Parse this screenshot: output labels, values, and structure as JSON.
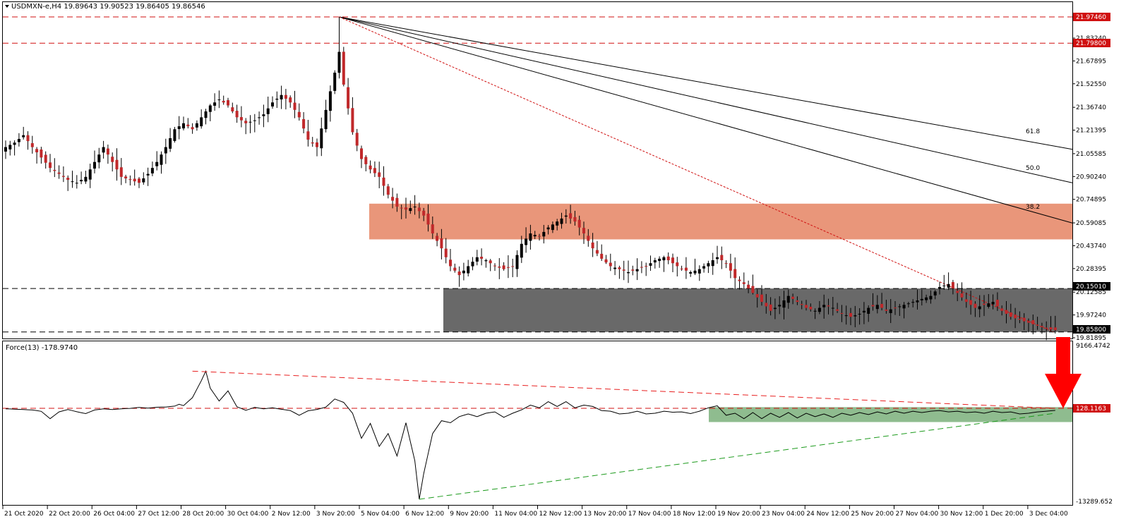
{
  "main": {
    "symbol_line": "USDMXN-e,H4  19.89643 19.90523 19.86405 19.86546",
    "price_axis_ticks": [
      "21.83240",
      "21.67895",
      "21.52550",
      "21.36740",
      "21.21395",
      "21.05585",
      "20.90240",
      "20.74895",
      "20.59085",
      "20.43740",
      "20.28395",
      "20.12585",
      "19.97240",
      "19.81895"
    ],
    "resistance_1": "21.97460",
    "resistance_2": "21.79800",
    "support_top": "20.15010",
    "support_bottom": "19.85800",
    "fib_labels": [
      "61.8",
      "50.0",
      "38.2"
    ],
    "colors": {
      "bull_candle": "#000000",
      "bear_candle": "#c0282a",
      "resistance_zone": "#e9967a",
      "support_zone": "#696969",
      "level_line": "#d01010"
    }
  },
  "indicator": {
    "title": "Force(13) -178.9740",
    "axis_top": "9166.4742",
    "axis_bottom": "-13289.652",
    "level": "128.1163",
    "colors": {
      "zone": "#8fbc8f",
      "arrow": "#ff0000",
      "upper_trend": "#e82020",
      "lower_trend": "#1c9a1c"
    }
  },
  "time_axis": [
    "21 Oct 2020",
    "22 Oct 20:00",
    "26 Oct 04:00",
    "27 Oct 12:00",
    "28 Oct 20:00",
    "30 Oct 04:00",
    "2 Nov 12:00",
    "3 Nov 20:00",
    "5 Nov 04:00",
    "6 Nov 12:00",
    "9 Nov 20:00",
    "11 Nov 04:00",
    "12 Nov 12:00",
    "13 Nov 20:00",
    "17 Nov 04:00",
    "18 Nov 12:00",
    "19 Nov 20:00",
    "23 Nov 04:00",
    "24 Nov 12:00",
    "25 Nov 20:00",
    "27 Nov 04:00",
    "30 Nov 12:00",
    "1 Dec 20:00",
    "3 Dec 04:00"
  ],
  "chart_data": [
    {
      "type": "candlestick",
      "title": "USDMXN-e,H4",
      "ylim": [
        19.81895,
        21.98
      ],
      "levels": [
        21.9746,
        21.798,
        20.1501,
        19.858
      ],
      "zones": [
        {
          "name": "resistance",
          "from": 20.48,
          "to": 20.72
        },
        {
          "name": "support",
          "from": 19.858,
          "to": 20.1501
        }
      ],
      "path": [
        [
          0,
          21.1
        ],
        [
          2,
          21.13
        ],
        [
          4,
          21.18
        ],
        [
          6,
          21.1
        ],
        [
          8,
          21.03
        ],
        [
          10,
          20.96
        ],
        [
          12,
          20.92
        ],
        [
          14,
          20.88
        ],
        [
          16,
          20.86
        ],
        [
          18,
          20.9
        ],
        [
          20,
          21.0
        ],
        [
          22,
          21.1
        ],
        [
          24,
          21.0
        ],
        [
          26,
          20.9
        ],
        [
          28,
          20.88
        ],
        [
          30,
          20.86
        ],
        [
          32,
          20.92
        ],
        [
          34,
          21.0
        ],
        [
          36,
          21.1
        ],
        [
          38,
          21.22
        ],
        [
          40,
          21.26
        ],
        [
          42,
          21.22
        ],
        [
          44,
          21.3
        ],
        [
          46,
          21.38
        ],
        [
          48,
          21.42
        ],
        [
          50,
          21.38
        ],
        [
          52,
          21.3
        ],
        [
          54,
          21.26
        ],
        [
          56,
          21.28
        ],
        [
          58,
          21.32
        ],
        [
          60,
          21.4
        ],
        [
          62,
          21.45
        ],
        [
          64,
          21.4
        ],
        [
          66,
          21.3
        ],
        [
          68,
          21.15
        ],
        [
          70,
          21.1
        ],
        [
          72,
          21.35
        ],
        [
          74,
          21.6
        ],
        [
          75,
          21.74
        ],
        [
          76,
          21.52
        ],
        [
          78,
          21.2
        ],
        [
          80,
          21.02
        ],
        [
          82,
          20.95
        ],
        [
          84,
          20.9
        ],
        [
          86,
          20.78
        ],
        [
          88,
          20.7
        ],
        [
          90,
          20.68
        ],
        [
          92,
          20.7
        ],
        [
          94,
          20.64
        ],
        [
          96,
          20.52
        ],
        [
          98,
          20.42
        ],
        [
          100,
          20.3
        ],
        [
          102,
          20.24
        ],
        [
          104,
          20.3
        ],
        [
          106,
          20.36
        ],
        [
          108,
          20.34
        ],
        [
          110,
          20.3
        ],
        [
          112,
          20.28
        ],
        [
          114,
          20.3
        ],
        [
          116,
          20.45
        ],
        [
          118,
          20.52
        ],
        [
          120,
          20.5
        ],
        [
          122,
          20.56
        ],
        [
          124,
          20.6
        ],
        [
          126,
          20.64
        ],
        [
          128,
          20.6
        ],
        [
          130,
          20.52
        ],
        [
          132,
          20.42
        ],
        [
          134,
          20.35
        ],
        [
          136,
          20.3
        ],
        [
          138,
          20.28
        ],
        [
          140,
          20.26
        ],
        [
          142,
          20.28
        ],
        [
          144,
          20.3
        ],
        [
          146,
          20.34
        ],
        [
          148,
          20.36
        ],
        [
          150,
          20.32
        ],
        [
          152,
          20.28
        ],
        [
          154,
          20.26
        ],
        [
          156,
          20.28
        ],
        [
          158,
          20.32
        ],
        [
          160,
          20.36
        ],
        [
          162,
          20.32
        ],
        [
          164,
          20.22
        ],
        [
          166,
          20.18
        ],
        [
          168,
          20.12
        ],
        [
          170,
          20.06
        ],
        [
          172,
          20.0
        ],
        [
          174,
          20.04
        ],
        [
          176,
          20.1
        ],
        [
          178,
          20.06
        ],
        [
          180,
          20.02
        ],
        [
          182,
          20.0
        ],
        [
          184,
          20.04
        ],
        [
          186,
          20.02
        ],
        [
          188,
          19.98
        ],
        [
          190,
          19.96
        ],
        [
          192,
          19.98
        ],
        [
          194,
          20.02
        ],
        [
          196,
          20.04
        ],
        [
          198,
          20.0
        ],
        [
          200,
          20.02
        ],
        [
          202,
          20.04
        ],
        [
          204,
          20.06
        ],
        [
          206,
          20.08
        ],
        [
          208,
          20.1
        ],
        [
          210,
          20.16
        ],
        [
          212,
          20.18
        ],
        [
          214,
          20.12
        ],
        [
          216,
          20.06
        ],
        [
          218,
          20.02
        ],
        [
          220,
          20.04
        ],
        [
          222,
          20.06
        ],
        [
          224,
          20.0
        ],
        [
          226,
          19.96
        ],
        [
          228,
          19.94
        ],
        [
          230,
          19.92
        ],
        [
          232,
          19.9
        ],
        [
          234,
          19.88
        ],
        [
          236,
          19.87
        ]
      ],
      "fibonacci_fan": {
        "anchor": [
          75,
          21.9746
        ],
        "ratios": [
          "38.2",
          "50.0",
          "61.8"
        ]
      }
    },
    {
      "type": "line",
      "title": "Force(13) -178.9740",
      "ylim": [
        -13289.652,
        9166.4742
      ],
      "level": 128.1163,
      "path": [
        [
          0,
          60
        ],
        [
          6,
          -120
        ],
        [
          8,
          -320
        ],
        [
          10,
          -1400
        ],
        [
          12,
          -400
        ],
        [
          14,
          -60
        ],
        [
          16,
          -380
        ],
        [
          18,
          -650
        ],
        [
          20,
          -120
        ],
        [
          22,
          40
        ],
        [
          24,
          -60
        ],
        [
          26,
          60
        ],
        [
          28,
          120
        ],
        [
          30,
          260
        ],
        [
          32,
          160
        ],
        [
          34,
          280
        ],
        [
          36,
          320
        ],
        [
          38,
          450
        ],
        [
          39,
          720
        ],
        [
          40,
          520
        ],
        [
          42,
          1700
        ],
        [
          44,
          4200
        ],
        [
          45,
          5600
        ],
        [
          46,
          3100
        ],
        [
          48,
          1200
        ],
        [
          50,
          2700
        ],
        [
          52,
          350
        ],
        [
          54,
          -160
        ],
        [
          56,
          260
        ],
        [
          58,
          60
        ],
        [
          60,
          200
        ],
        [
          62,
          -20
        ],
        [
          64,
          -200
        ],
        [
          66,
          -900
        ],
        [
          68,
          -240
        ],
        [
          70,
          -40
        ],
        [
          72,
          300
        ],
        [
          74,
          1500
        ],
        [
          76,
          1000
        ],
        [
          78,
          -600
        ],
        [
          80,
          -4300
        ],
        [
          82,
          -2100
        ],
        [
          84,
          -5500
        ],
        [
          86,
          -3600
        ],
        [
          88,
          -6900
        ],
        [
          90,
          -2000
        ],
        [
          92,
          -7600
        ],
        [
          93,
          -13289.652
        ],
        [
          94,
          -9500
        ],
        [
          96,
          -3600
        ],
        [
          98,
          -1700
        ],
        [
          100,
          -2000
        ],
        [
          102,
          -1100
        ],
        [
          104,
          -700
        ],
        [
          106,
          -1100
        ],
        [
          108,
          -600
        ],
        [
          110,
          -400
        ],
        [
          112,
          -1200
        ],
        [
          114,
          -600
        ],
        [
          116,
          -100
        ],
        [
          118,
          600
        ],
        [
          120,
          200
        ],
        [
          122,
          1100
        ],
        [
          124,
          400
        ],
        [
          126,
          1100
        ],
        [
          128,
          200
        ],
        [
          130,
          600
        ],
        [
          132,
          400
        ],
        [
          134,
          -200
        ],
        [
          136,
          -300
        ],
        [
          138,
          -700
        ],
        [
          140,
          -600
        ],
        [
          142,
          -300
        ],
        [
          144,
          -700
        ],
        [
          146,
          -600
        ],
        [
          148,
          -300
        ],
        [
          150,
          -450
        ],
        [
          152,
          -400
        ],
        [
          154,
          -650
        ],
        [
          156,
          -300
        ],
        [
          158,
          200
        ],
        [
          160,
          500
        ],
        [
          162,
          -900
        ],
        [
          164,
          -600
        ],
        [
          166,
          -1400
        ],
        [
          168,
          -500
        ],
        [
          170,
          -1400
        ],
        [
          172,
          -600
        ],
        [
          174,
          -1200
        ],
        [
          176,
          -500
        ],
        [
          178,
          -1300
        ],
        [
          180,
          -600
        ],
        [
          182,
          -1100
        ],
        [
          184,
          -700
        ],
        [
          186,
          -1200
        ],
        [
          188,
          -600
        ],
        [
          190,
          -900
        ],
        [
          192,
          -500
        ],
        [
          194,
          -800
        ],
        [
          196,
          -400
        ],
        [
          198,
          -700
        ],
        [
          200,
          -300
        ],
        [
          202,
          -600
        ],
        [
          204,
          -300
        ],
        [
          206,
          -500
        ],
        [
          208,
          -300
        ],
        [
          210,
          -200
        ],
        [
          212,
          -400
        ],
        [
          214,
          -300
        ],
        [
          216,
          -500
        ],
        [
          218,
          -400
        ],
        [
          220,
          -600
        ],
        [
          222,
          -300
        ],
        [
          224,
          -500
        ],
        [
          226,
          -400
        ],
        [
          228,
          -700
        ],
        [
          230,
          -600
        ],
        [
          232,
          -400
        ],
        [
          234,
          -300
        ],
        [
          236,
          -178.974
        ]
      ],
      "zone": {
        "from": -1900,
        "to": 300
      },
      "trendlines": [
        {
          "color": "red",
          "from": [
            42,
            5600
          ],
          "to": [
            236,
            128.1163
          ]
        },
        {
          "color": "green",
          "from": [
            93,
            -13289.652
          ],
          "to": [
            236,
            -600
          ]
        }
      ]
    }
  ]
}
